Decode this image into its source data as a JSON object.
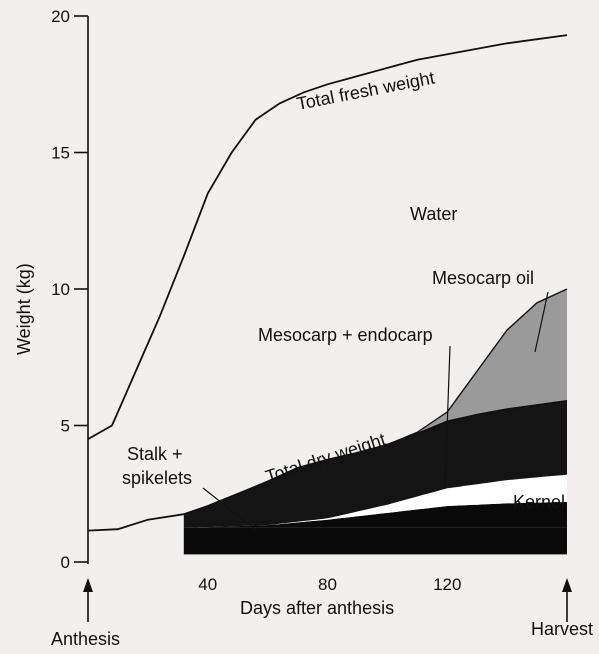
{
  "chart_data": {
    "type": "area",
    "xlabel": "Days after anthesis",
    "ylabel": "Weight (kg)",
    "xlim": [
      0,
      160
    ],
    "ylim": [
      0,
      20
    ],
    "x_ticks": [
      40,
      80,
      120
    ],
    "y_ticks": [
      0,
      5,
      10,
      15,
      20
    ],
    "grid": false,
    "colors": {
      "stalk": "#0a0a0a",
      "mesocarp_endocarp": "#141414",
      "kernel_gap": "#ffffff",
      "mesocarp_oil": "#9a9a9a",
      "line": "#111111"
    },
    "series": [
      {
        "name": "Total fresh weight",
        "x": [
          0,
          8,
          16,
          24,
          32,
          40,
          48,
          56,
          64,
          72,
          80,
          90,
          100,
          110,
          120,
          130,
          140,
          150,
          160
        ],
        "values": [
          4.5,
          5.0,
          7.0,
          9.0,
          11.2,
          13.5,
          15.0,
          16.2,
          16.8,
          17.2,
          17.5,
          17.8,
          18.1,
          18.4,
          18.6,
          18.8,
          19.0,
          19.15,
          19.3
        ]
      },
      {
        "name": "Total dry weight",
        "x": [
          0,
          10,
          20,
          32,
          40,
          50,
          60,
          70,
          80,
          90,
          100,
          110,
          120,
          130,
          140,
          150,
          160
        ],
        "values": [
          1.15,
          1.2,
          1.55,
          1.75,
          2.05,
          2.5,
          2.95,
          3.45,
          3.75,
          4.0,
          4.3,
          4.7,
          5.15,
          5.4,
          5.6,
          5.75,
          5.9
        ]
      },
      {
        "name": "Stalk + spikelets",
        "x": [
          32,
          160
        ],
        "values": [
          1.25,
          1.25
        ]
      },
      {
        "name": "Kernel",
        "x": [
          32,
          60,
          80,
          100,
          120,
          140,
          160
        ],
        "values": [
          1.25,
          1.35,
          1.55,
          1.8,
          2.05,
          2.15,
          2.2
        ]
      },
      {
        "name": "Mesocarp + endocarp",
        "x": [
          32,
          60,
          80,
          100,
          120,
          140,
          160
        ],
        "values": [
          1.25,
          1.35,
          1.6,
          2.1,
          2.7,
          3.0,
          3.2
        ]
      },
      {
        "name": "Mesocarp oil",
        "x": [
          100,
          110,
          120,
          130,
          140,
          150,
          160
        ],
        "values": [
          4.3,
          4.75,
          5.5,
          7.0,
          8.5,
          9.5,
          10.0
        ]
      }
    ],
    "annotations": [
      {
        "text": "Total fresh weight"
      },
      {
        "text": "Water"
      },
      {
        "text": "Mesocarp oil"
      },
      {
        "text": "Mesocarp + endocarp"
      },
      {
        "text": "Total dry weight"
      },
      {
        "text": "Stalk +"
      },
      {
        "text": "spikelets"
      },
      {
        "text": "Kernel"
      },
      {
        "text": "Anthesis"
      },
      {
        "text": "Harvest"
      }
    ]
  }
}
